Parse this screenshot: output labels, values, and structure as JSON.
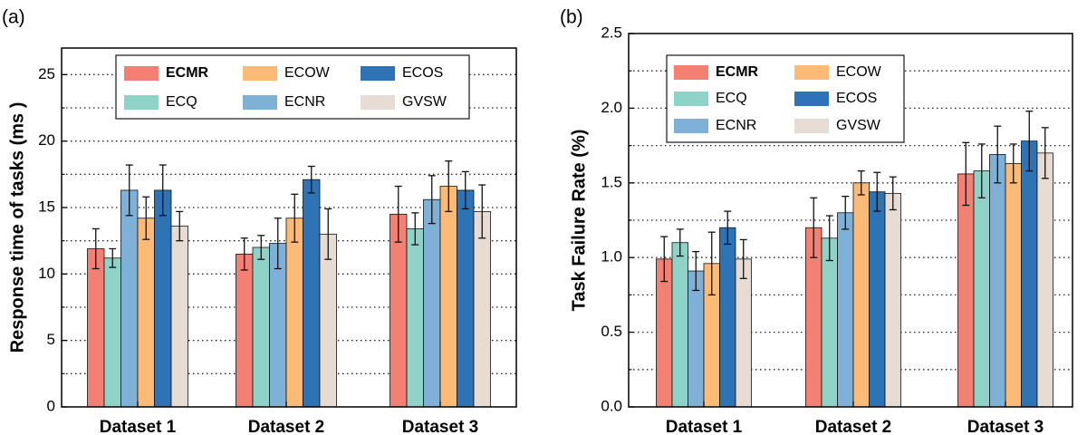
{
  "chart_data": [
    {
      "type": "bar",
      "panel_label": "(a)",
      "title": "",
      "xlabel": "",
      "ylabel": "Response time of tasks (ms )",
      "ylim": [
        0,
        27
      ],
      "yticks": [
        0,
        5,
        10,
        15,
        20,
        25
      ],
      "yticks_labels": [
        "0",
        "5",
        "10",
        "15",
        "20",
        "25"
      ],
      "grid_lines": [
        2.5,
        5,
        7.5,
        10,
        12.5,
        15,
        17.5,
        20,
        22.5,
        25
      ],
      "legend_placement": "top-center",
      "categories": [
        "Dataset 1",
        "Dataset 2",
        "Dataset 3"
      ],
      "series": [
        {
          "name": "ECMR",
          "color": "#F47F73",
          "values": [
            11.9,
            11.5,
            14.5
          ],
          "errors": [
            1.5,
            1.2,
            2.1
          ]
        },
        {
          "name": "ECQ",
          "color": "#8FD3C8",
          "values": [
            11.2,
            12.0,
            13.4
          ],
          "errors": [
            0.7,
            0.9,
            1.2
          ]
        },
        {
          "name": "ECNR",
          "color": "#7FB0D8",
          "values": [
            16.3,
            12.3,
            15.6
          ],
          "errors": [
            1.9,
            1.9,
            1.8
          ]
        },
        {
          "name": "ECOW",
          "color": "#FBBB76",
          "values": [
            14.2,
            14.2,
            16.6
          ],
          "errors": [
            1.6,
            1.8,
            1.9
          ]
        },
        {
          "name": "ECOS",
          "color": "#2E73B5",
          "values": [
            16.3,
            17.1,
            16.3
          ],
          "errors": [
            1.9,
            1.0,
            1.4
          ]
        },
        {
          "name": "GVSW",
          "color": "#E7DCD4",
          "values": [
            13.6,
            13.0,
            14.7
          ],
          "errors": [
            1.1,
            1.9,
            2.0
          ]
        }
      ],
      "legend_order": [
        "ECMR",
        "ECOW",
        "ECOS",
        "ECQ",
        "ECNR",
        "GVSW"
      ]
    },
    {
      "type": "bar",
      "panel_label": "(b)",
      "title": "",
      "xlabel": "",
      "ylabel": "Task Failure Rate (%)",
      "ylim": [
        0,
        2.5
      ],
      "yticks": [
        0,
        0.5,
        1.0,
        1.5,
        2.0,
        2.5
      ],
      "yticks_labels": [
        "0.0",
        "0.5",
        "1.0",
        "1.5",
        "2.0",
        "2.5"
      ],
      "grid_lines": [
        0.25,
        0.5,
        0.75,
        1.0,
        1.25,
        1.5,
        1.75,
        2.0,
        2.25
      ],
      "legend_placement": "top-left",
      "categories": [
        "Dataset 1",
        "Dataset 2",
        "Dataset 3"
      ],
      "series": [
        {
          "name": "ECMR",
          "color": "#F47F73",
          "values": [
            0.99,
            1.2,
            1.56
          ],
          "errors": [
            0.15,
            0.2,
            0.21
          ]
        },
        {
          "name": "ECQ",
          "color": "#8FD3C8",
          "values": [
            1.1,
            1.13,
            1.58
          ],
          "errors": [
            0.09,
            0.15,
            0.18
          ]
        },
        {
          "name": "ECNR",
          "color": "#7FB0D8",
          "values": [
            0.91,
            1.3,
            1.69
          ],
          "errors": [
            0.13,
            0.11,
            0.19
          ]
        },
        {
          "name": "ECOW",
          "color": "#FBBB76",
          "values": [
            0.96,
            1.5,
            1.63
          ],
          "errors": [
            0.21,
            0.08,
            0.13
          ]
        },
        {
          "name": "ECOS",
          "color": "#2E73B5",
          "values": [
            1.2,
            1.44,
            1.78
          ],
          "errors": [
            0.11,
            0.13,
            0.2
          ]
        },
        {
          "name": "GVSW",
          "color": "#E7DCD4",
          "values": [
            0.99,
            1.43,
            1.7
          ],
          "errors": [
            0.13,
            0.11,
            0.17
          ]
        }
      ],
      "legend_order": [
        "ECMR",
        "ECOW",
        "ECQ",
        "ECOS",
        "ECNR",
        "GVSW"
      ]
    }
  ]
}
